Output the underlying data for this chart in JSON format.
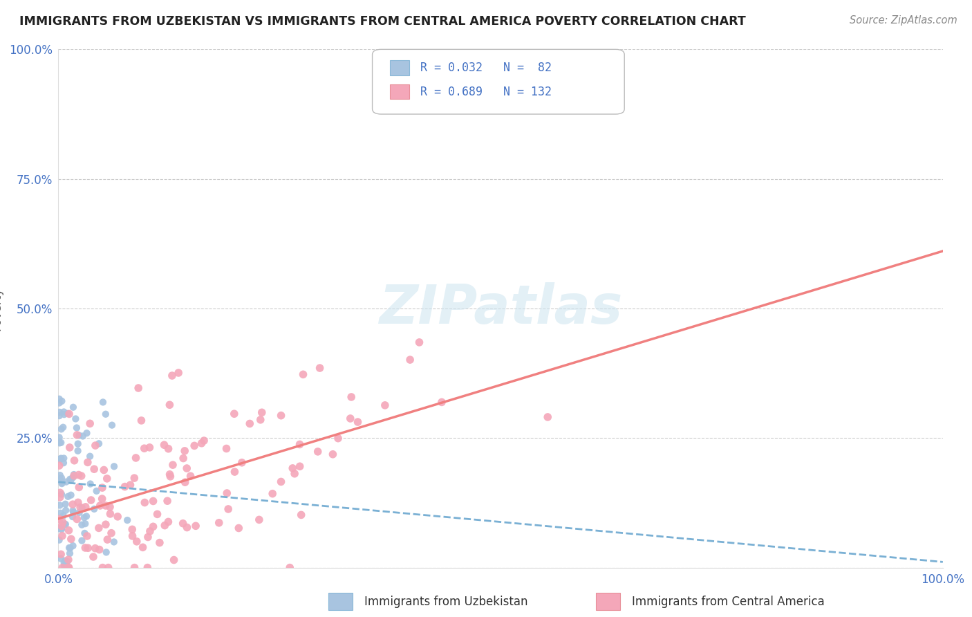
{
  "title": "IMMIGRANTS FROM UZBEKISTAN VS IMMIGRANTS FROM CENTRAL AMERICA POVERTY CORRELATION CHART",
  "source": "Source: ZipAtlas.com",
  "ylabel": "Poverty",
  "xlim": [
    0.0,
    1.0
  ],
  "ylim": [
    0.0,
    1.0
  ],
  "watermark": "ZIPatlas",
  "legend_uzbekistan_R": "0.032",
  "legend_uzbekistan_N": "82",
  "legend_central_america_R": "0.689",
  "legend_central_america_N": "132",
  "uzbekistan_color": "#a8c4e0",
  "central_america_color": "#f4a7b9",
  "uzbekistan_line_color": "#7ab0d4",
  "central_america_line_color": "#f08080",
  "background_color": "#ffffff",
  "grid_color": "#cccccc",
  "title_color": "#222222",
  "source_color": "#888888",
  "tick_color": "#4472c4",
  "label_color": "#555555"
}
